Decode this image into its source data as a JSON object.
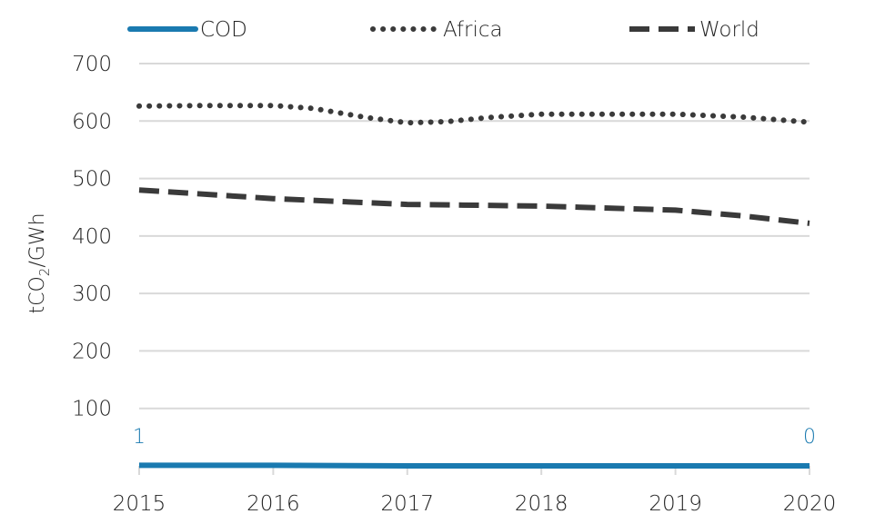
{
  "chart_data": {
    "type": "line",
    "x": [
      "2015",
      "2016",
      "2017",
      "2018",
      "2019",
      "2020"
    ],
    "ylabel": "tCO₂/GWh",
    "ylabel_main": "tCO",
    "ylabel_sub": "2",
    "ylabel_rest": "/GWh",
    "yticks": [
      "100",
      "200",
      "300",
      "400",
      "500",
      "600",
      "700"
    ],
    "ylim": [
      0,
      700
    ],
    "grid": true,
    "legend_position": "top",
    "series": [
      {
        "name": "COD",
        "style": "solid",
        "color": "#1a7ab0",
        "x": [
          2015,
          2016,
          2017,
          2018,
          2019,
          2020
        ],
        "values": [
          1,
          1,
          0,
          0,
          0,
          0
        ],
        "data_labels": [
          {
            "x": 2015,
            "text": "1"
          },
          {
            "x": 2020,
            "text": "0"
          }
        ]
      },
      {
        "name": "Africa",
        "style": "dotted",
        "color": "#3a3a3a",
        "x": [
          2015,
          2015.5,
          2016,
          2016.3,
          2016.7,
          2017,
          2017.3,
          2017.6,
          2018,
          2018.5,
          2019,
          2019.5,
          2020
        ],
        "values": [
          626,
          627,
          627,
          622,
          606,
          597,
          599,
          606,
          612,
          612,
          612,
          607,
          598
        ]
      },
      {
        "name": "World",
        "style": "dashed",
        "color": "#3a3a3a",
        "x": [
          2015,
          2016,
          2017,
          2018,
          2019,
          2019.5,
          2020
        ],
        "values": [
          480,
          465,
          455,
          452,
          445,
          435,
          422
        ]
      }
    ]
  }
}
